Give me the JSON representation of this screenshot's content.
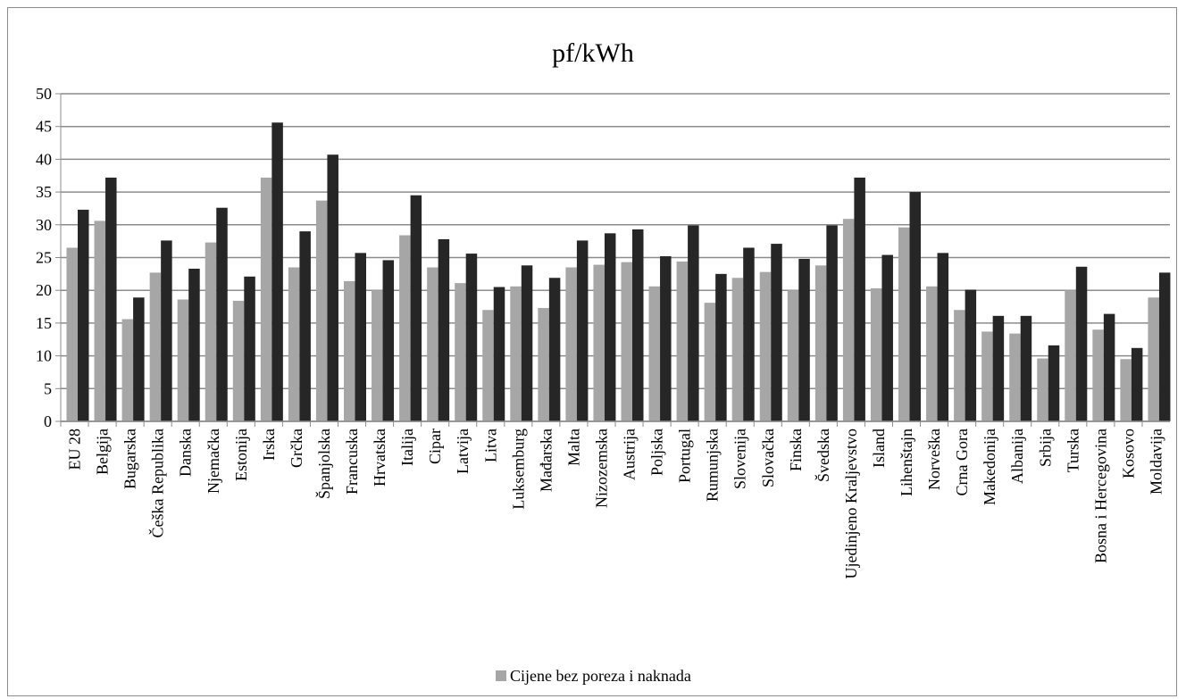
{
  "colors": {
    "series1": "#a6a6a6",
    "series2": "#262626",
    "grid": "#8c8c8c",
    "axis": "#8c8c8c"
  },
  "legend": {
    "label": "Cijene bez poreza i naknada"
  },
  "chart_data": {
    "type": "bar",
    "title": "pf/kWh",
    "xlabel": "",
    "ylabel": "",
    "ylim": [
      0,
      50
    ],
    "yticks": [
      0,
      5,
      10,
      15,
      20,
      25,
      30,
      35,
      40,
      45,
      50
    ],
    "grid": true,
    "legend_position": "bottom",
    "categories": [
      "EU 28",
      "Belgija",
      "Bugarska",
      "Češka Republika",
      "Danska",
      "Njemačka",
      "Estonija",
      "Irska",
      "Grčka",
      "Španjolska",
      "Francuska",
      "Hrvatska",
      "Italija",
      "Cipar",
      "Latvija",
      "Litva",
      "Luksemburg",
      "Mađarska",
      "Malta",
      "Nizozemska",
      "Austrija",
      "Poljska",
      "Portugal",
      "Rumunjska",
      "Slovenija",
      "Slovačka",
      "Finska",
      "Švedska",
      "Ujedinjeno Kraljevstvo",
      "Island",
      "Lihenštajn",
      "Norveška",
      "Crna Gora",
      "Makedonija",
      "Albanija",
      "Srbija",
      "Turska",
      "Bosna i Hercegovina",
      "Kosovo",
      "Moldavija"
    ],
    "series": [
      {
        "name": "Cijene bez poreza i naknada",
        "values": [
          26.5,
          30.6,
          15.6,
          22.7,
          18.6,
          27.3,
          18.4,
          37.2,
          23.5,
          33.7,
          21.4,
          20.0,
          28.4,
          23.5,
          21.1,
          17.0,
          20.6,
          17.3,
          23.5,
          23.9,
          24.3,
          20.6,
          24.4,
          18.1,
          21.9,
          22.8,
          20.0,
          23.8,
          30.9,
          20.3,
          29.6,
          20.6,
          17.0,
          13.7,
          13.4,
          9.6,
          20.0,
          14.0,
          9.5,
          18.9
        ]
      },
      {
        "values": [
          32.3,
          37.2,
          18.9,
          27.6,
          23.3,
          32.6,
          22.1,
          45.6,
          29.0,
          40.7,
          25.7,
          24.6,
          34.5,
          27.8,
          25.6,
          20.5,
          23.8,
          21.9,
          27.6,
          28.7,
          29.3,
          25.2,
          29.9,
          22.5,
          26.5,
          27.1,
          24.8,
          29.9,
          37.2,
          25.4,
          35.0,
          25.7,
          20.1,
          16.1,
          16.1,
          11.6,
          23.6,
          16.4,
          11.2,
          22.7
        ]
      }
    ]
  }
}
